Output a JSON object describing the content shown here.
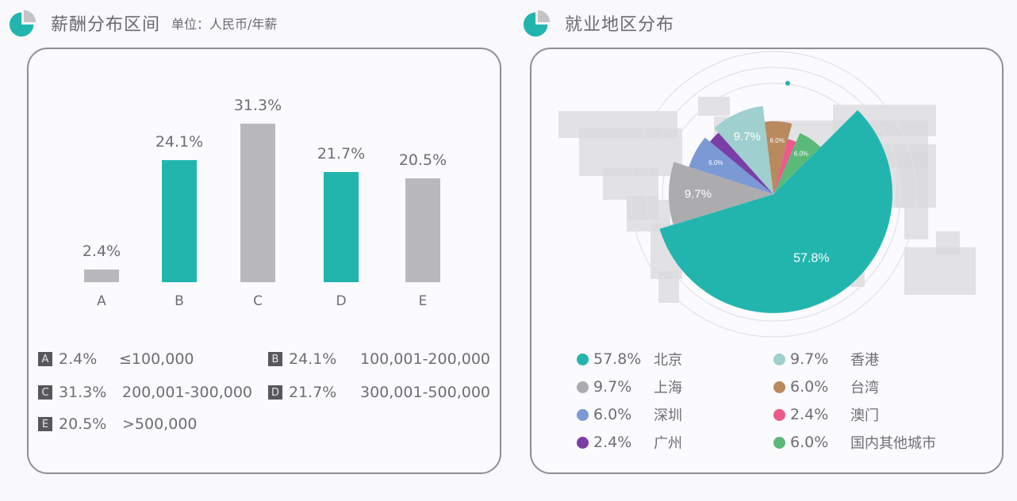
{
  "left_header": {
    "title": "薪酬分布区间",
    "unit": "单位：人民币/年薪",
    "icon": "pie-chart-icon"
  },
  "right_header": {
    "title": "就业地区分布",
    "icon": "pie-chart-icon"
  },
  "colors": {
    "teal": "#22b5ae",
    "gray": "#b9b8bb",
    "icon_teal": "#22b5ae",
    "icon_gray": "#c4c3c6",
    "panel_border": "#8f8f93",
    "legend_box": "#58585a"
  },
  "chart_data": [
    {
      "type": "bar",
      "title": "薪酬分布区间",
      "subtitle": "单位：人民币/年薪",
      "categories": [
        "A",
        "B",
        "C",
        "D",
        "E"
      ],
      "values": [
        2.4,
        24.1,
        31.3,
        21.7,
        20.5
      ],
      "value_labels": [
        "2.4%",
        "24.1%",
        "31.3%",
        "21.7%",
        "20.5%"
      ],
      "bar_colors": [
        "#b9b8bb",
        "#22b5ae",
        "#b9b8bb",
        "#22b5ae",
        "#b9b8bb"
      ],
      "xlabel": "",
      "ylabel": "",
      "ylim": [
        0,
        35
      ],
      "grid": false,
      "legend": [
        {
          "key": "A",
          "pct": "2.4%",
          "range": "≤100,000"
        },
        {
          "key": "B",
          "pct": "24.1%",
          "range": "100,001-200,000"
        },
        {
          "key": "C",
          "pct": "31.3%",
          "range": "200,001-300,000"
        },
        {
          "key": "D",
          "pct": "21.7%",
          "range": "300,001-500,000"
        },
        {
          "key": "E",
          "pct": "20.5%",
          "range": ">500,000"
        }
      ]
    },
    {
      "type": "pie",
      "title": "就业地区分布",
      "labels": [
        "北京",
        "上海",
        "深圳",
        "广州",
        "香港",
        "台湾",
        "澳门",
        "国内其他城市"
      ],
      "values": [
        57.8,
        9.7,
        6.0,
        2.4,
        9.7,
        6.0,
        2.4,
        6.0
      ],
      "value_labels": [
        "57.8%",
        "9.7%",
        "6.0%",
        "2.4%",
        "9.7%",
        "6.0%",
        "2.4%",
        "6.0%"
      ],
      "colors": [
        "#22b5ae",
        "#acabae",
        "#7b99d4",
        "#7a3ea6",
        "#9fcfcf",
        "#b88a5e",
        "#ea5a8a",
        "#5bb97a"
      ],
      "slice_radii": [
        150,
        132,
        112,
        104,
        112,
        92,
        72,
        84
      ],
      "start_angle_deg": 45,
      "background": "world map (dotted)",
      "legend_position": "bottom, two columns"
    }
  ]
}
